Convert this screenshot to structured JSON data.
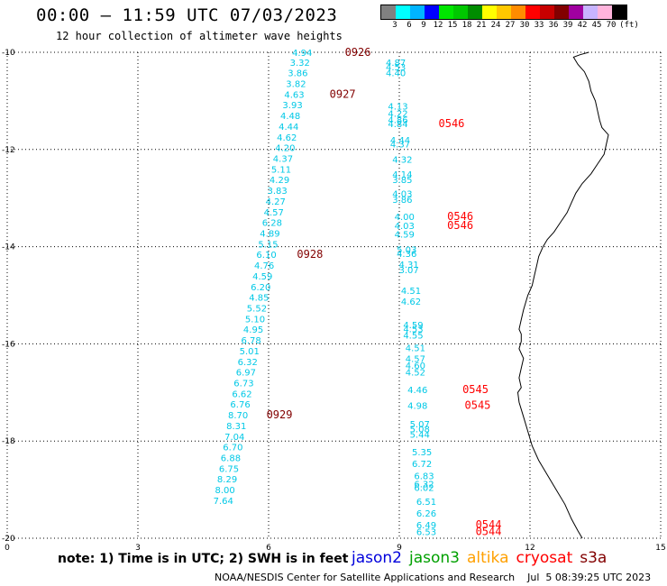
{
  "header": {
    "title": "00:00 – 11:59 UTC 07/03/2023",
    "subtitle": "12 hour collection of altimeter wave heights"
  },
  "colorbar": {
    "unit": "(ft)",
    "labels": [
      "3",
      "6",
      "9",
      "12",
      "15",
      "18",
      "21",
      "24",
      "27",
      "30",
      "33",
      "36",
      "39",
      "42",
      "45",
      "70"
    ],
    "colors": [
      "#808080",
      "#00ffff",
      "#00b4ff",
      "#0000ff",
      "#00e600",
      "#00c800",
      "#008c00",
      "#ffff00",
      "#ffc800",
      "#ff8c00",
      "#ff0000",
      "#c80000",
      "#820000",
      "#a000a0",
      "#c8b4ff",
      "#ffb4dc",
      "#000000"
    ]
  },
  "map": {
    "lon_range": [
      0,
      15
    ],
    "lat_range": [
      -20,
      -10
    ],
    "lon_ticks": [
      "0",
      "3",
      "6",
      "9",
      "12",
      "15"
    ],
    "lat_ticks": [
      "-10",
      "-12",
      "-14",
      "-16",
      "-18",
      "-20"
    ],
    "grid": true,
    "grid_style": "dotted",
    "coastline_color": "#000000"
  },
  "tracks": [
    {
      "name": "west_track",
      "color": "#00c8e6",
      "points": [
        {
          "lon": 7.0,
          "lat": -10.0,
          "v": "4.94"
        },
        {
          "lon": 6.95,
          "lat": -10.2,
          "v": "3.32"
        },
        {
          "lon": 6.9,
          "lat": -10.42,
          "v": "3.86"
        },
        {
          "lon": 6.86,
          "lat": -10.64,
          "v": "3.82"
        },
        {
          "lon": 6.82,
          "lat": -10.86,
          "v": "4.63"
        },
        {
          "lon": 6.78,
          "lat": -11.08,
          "v": "3.93"
        },
        {
          "lon": 6.73,
          "lat": -11.3,
          "v": "4.48"
        },
        {
          "lon": 6.69,
          "lat": -11.52,
          "v": "4.44"
        },
        {
          "lon": 6.65,
          "lat": -11.74,
          "v": "4.62"
        },
        {
          "lon": 6.61,
          "lat": -11.96,
          "v": "4.20"
        },
        {
          "lon": 6.56,
          "lat": -12.18,
          "v": "4.37"
        },
        {
          "lon": 6.52,
          "lat": -12.4,
          "v": "5.11"
        },
        {
          "lon": 6.48,
          "lat": -12.62,
          "v": "4.29"
        },
        {
          "lon": 6.43,
          "lat": -12.84,
          "v": "3.83"
        },
        {
          "lon": 6.39,
          "lat": -13.06,
          "v": "4.27"
        },
        {
          "lon": 6.35,
          "lat": -13.28,
          "v": "4.57"
        },
        {
          "lon": 6.31,
          "lat": -13.5,
          "v": "6.28"
        },
        {
          "lon": 6.26,
          "lat": -13.72,
          "v": "4.89"
        },
        {
          "lon": 6.22,
          "lat": -13.94,
          "v": "5.15"
        },
        {
          "lon": 6.18,
          "lat": -14.16,
          "v": "6.10"
        },
        {
          "lon": 6.13,
          "lat": -14.38,
          "v": "4.76"
        },
        {
          "lon": 6.09,
          "lat": -14.6,
          "v": "4.59"
        },
        {
          "lon": 6.05,
          "lat": -14.82,
          "v": "6.20"
        },
        {
          "lon": 6.01,
          "lat": -15.04,
          "v": "4.85"
        },
        {
          "lon": 5.96,
          "lat": -15.26,
          "v": "5.52"
        },
        {
          "lon": 5.92,
          "lat": -15.48,
          "v": "5.10"
        },
        {
          "lon": 5.88,
          "lat": -15.7,
          "v": "4.95"
        },
        {
          "lon": 5.83,
          "lat": -15.92,
          "v": "6.78"
        },
        {
          "lon": 5.79,
          "lat": -16.14,
          "v": "5.01"
        },
        {
          "lon": 5.75,
          "lat": -16.36,
          "v": "6.32"
        },
        {
          "lon": 5.71,
          "lat": -16.58,
          "v": "6.97"
        },
        {
          "lon": 5.66,
          "lat": -16.8,
          "v": "6.73"
        },
        {
          "lon": 5.62,
          "lat": -17.02,
          "v": "6.62"
        },
        {
          "lon": 5.58,
          "lat": -17.24,
          "v": "6.76"
        },
        {
          "lon": 5.53,
          "lat": -17.46,
          "v": "8.70"
        },
        {
          "lon": 5.49,
          "lat": -17.68,
          "v": "8.31"
        },
        {
          "lon": 5.45,
          "lat": -17.9,
          "v": "7.04"
        },
        {
          "lon": 5.41,
          "lat": -18.12,
          "v": "6.70"
        },
        {
          "lon": 5.36,
          "lat": -18.34,
          "v": "6.88"
        },
        {
          "lon": 5.32,
          "lat": -18.56,
          "v": "6.75"
        },
        {
          "lon": 5.28,
          "lat": -18.78,
          "v": "8.29"
        },
        {
          "lon": 5.23,
          "lat": -19.0,
          "v": "8.00"
        },
        {
          "lon": 5.19,
          "lat": -19.22,
          "v": "7.64"
        }
      ]
    },
    {
      "name": "east_track",
      "color": "#00c8e6",
      "points": [
        {
          "lon": 9.15,
          "lat": -10.2,
          "v": "4.87"
        },
        {
          "lon": 9.15,
          "lat": -10.3,
          "v": "4.53"
        },
        {
          "lon": 9.15,
          "lat": -10.42,
          "v": "4.40"
        },
        {
          "lon": 9.2,
          "lat": -11.1,
          "v": "4.13"
        },
        {
          "lon": 9.2,
          "lat": -11.25,
          "v": "4.22"
        },
        {
          "lon": 9.2,
          "lat": -11.38,
          "v": "4.86"
        },
        {
          "lon": 9.2,
          "lat": -11.47,
          "v": "4.84"
        },
        {
          "lon": 9.25,
          "lat": -11.8,
          "v": "4.44"
        },
        {
          "lon": 9.25,
          "lat": -11.88,
          "v": "4.37"
        },
        {
          "lon": 9.3,
          "lat": -12.2,
          "v": "4.32"
        },
        {
          "lon": 9.3,
          "lat": -12.5,
          "v": "4.14"
        },
        {
          "lon": 9.3,
          "lat": -12.62,
          "v": "3.85"
        },
        {
          "lon": 9.3,
          "lat": -12.9,
          "v": "4.03"
        },
        {
          "lon": 9.3,
          "lat": -13.02,
          "v": "3.86"
        },
        {
          "lon": 9.35,
          "lat": -13.38,
          "v": "4.00"
        },
        {
          "lon": 9.35,
          "lat": -13.56,
          "v": "4.03"
        },
        {
          "lon": 9.35,
          "lat": -13.74,
          "v": "4.59"
        },
        {
          "lon": 9.4,
          "lat": -14.05,
          "v": "5.03"
        },
        {
          "lon": 9.4,
          "lat": -14.14,
          "v": "4.36"
        },
        {
          "lon": 9.45,
          "lat": -14.36,
          "v": "4.31"
        },
        {
          "lon": 9.45,
          "lat": -14.47,
          "v": "3.07"
        },
        {
          "lon": 9.5,
          "lat": -14.9,
          "v": "4.51"
        },
        {
          "lon": 9.5,
          "lat": -15.12,
          "v": "4.62"
        },
        {
          "lon": 9.55,
          "lat": -15.6,
          "v": "4.59"
        },
        {
          "lon": 9.55,
          "lat": -15.69,
          "v": "4.53"
        },
        {
          "lon": 9.55,
          "lat": -15.82,
          "v": "4.55"
        },
        {
          "lon": 9.6,
          "lat": -16.08,
          "v": "4.51"
        },
        {
          "lon": 9.6,
          "lat": -16.3,
          "v": "4.57"
        },
        {
          "lon": 9.6,
          "lat": -16.44,
          "v": "4.60"
        },
        {
          "lon": 9.6,
          "lat": -16.58,
          "v": "4.52"
        },
        {
          "lon": 9.65,
          "lat": -16.94,
          "v": "4.46"
        },
        {
          "lon": 9.65,
          "lat": -17.26,
          "v": "4.98"
        },
        {
          "lon": 9.7,
          "lat": -17.64,
          "v": "5.07"
        },
        {
          "lon": 9.7,
          "lat": -17.75,
          "v": "5.08"
        },
        {
          "lon": 9.7,
          "lat": -17.86,
          "v": "5.44"
        },
        {
          "lon": 9.75,
          "lat": -18.22,
          "v": "5.35"
        },
        {
          "lon": 9.75,
          "lat": -18.46,
          "v": "6.72"
        },
        {
          "lon": 9.8,
          "lat": -18.71,
          "v": "6.83"
        },
        {
          "lon": 9.8,
          "lat": -18.88,
          "v": "6.32"
        },
        {
          "lon": 9.8,
          "lat": -18.95,
          "v": "6.02"
        },
        {
          "lon": 9.85,
          "lat": -19.24,
          "v": "6.51"
        },
        {
          "lon": 9.85,
          "lat": -19.48,
          "v": "6.26"
        },
        {
          "lon": 9.85,
          "lat": -19.72,
          "v": "6.49"
        },
        {
          "lon": 9.85,
          "lat": -19.86,
          "v": "6.53"
        }
      ]
    }
  ],
  "pass_labels": [
    {
      "text": "0926",
      "lon": 7.75,
      "lat": -10.0,
      "color": "#820000"
    },
    {
      "text": "0927",
      "lon": 7.4,
      "lat": -10.86,
      "color": "#820000"
    },
    {
      "text": "0928",
      "lon": 6.65,
      "lat": -14.16,
      "color": "#820000"
    },
    {
      "text": "0929",
      "lon": 5.95,
      "lat": -17.46,
      "color": "#820000"
    },
    {
      "text": "0546",
      "lon": 9.9,
      "lat": -11.47,
      "color": "#ff0000"
    },
    {
      "text": "0546",
      "lon": 10.1,
      "lat": -13.38,
      "color": "#ff0000"
    },
    {
      "text": "0546",
      "lon": 10.1,
      "lat": -13.56,
      "color": "#ff0000"
    },
    {
      "text": "0545",
      "lon": 10.45,
      "lat": -16.94,
      "color": "#ff0000"
    },
    {
      "text": "0545",
      "lon": 10.5,
      "lat": -17.26,
      "color": "#ff0000"
    },
    {
      "text": "0544",
      "lon": 10.75,
      "lat": -19.72,
      "color": "#ff0000"
    },
    {
      "text": "0544",
      "lon": 10.75,
      "lat": -19.86,
      "color": "#ff0000"
    }
  ],
  "coastline": [
    [
      13.35,
      -10.0
    ],
    [
      13.15,
      -10.05
    ],
    [
      13.0,
      -10.1
    ],
    [
      13.1,
      -10.25
    ],
    [
      13.25,
      -10.4
    ],
    [
      13.35,
      -10.6
    ],
    [
      13.4,
      -10.8
    ],
    [
      13.5,
      -11.0
    ],
    [
      13.55,
      -11.2
    ],
    [
      13.6,
      -11.4
    ],
    [
      13.65,
      -11.55
    ],
    [
      13.8,
      -11.7
    ],
    [
      13.75,
      -11.9
    ],
    [
      13.7,
      -12.1
    ],
    [
      13.55,
      -12.3
    ],
    [
      13.4,
      -12.5
    ],
    [
      13.2,
      -12.7
    ],
    [
      13.05,
      -12.9
    ],
    [
      12.95,
      -13.1
    ],
    [
      12.85,
      -13.3
    ],
    [
      12.7,
      -13.5
    ],
    [
      12.55,
      -13.7
    ],
    [
      12.4,
      -13.85
    ],
    [
      12.3,
      -14.0
    ],
    [
      12.2,
      -14.2
    ],
    [
      12.15,
      -14.4
    ],
    [
      12.1,
      -14.6
    ],
    [
      12.05,
      -14.8
    ],
    [
      11.95,
      -15.0
    ],
    [
      11.85,
      -15.3
    ],
    [
      11.8,
      -15.5
    ],
    [
      11.75,
      -15.7
    ],
    [
      11.8,
      -15.8
    ],
    [
      11.8,
      -15.95
    ],
    [
      11.75,
      -16.1
    ],
    [
      11.85,
      -16.3
    ],
    [
      11.8,
      -16.5
    ],
    [
      11.75,
      -16.7
    ],
    [
      11.8,
      -16.9
    ],
    [
      11.72,
      -17.0
    ],
    [
      11.75,
      -17.2
    ],
    [
      11.85,
      -17.5
    ],
    [
      11.95,
      -17.8
    ],
    [
      12.05,
      -18.1
    ],
    [
      12.2,
      -18.4
    ],
    [
      12.4,
      -18.7
    ],
    [
      12.6,
      -19.0
    ],
    [
      12.8,
      -19.3
    ],
    [
      12.95,
      -19.6
    ],
    [
      13.1,
      -19.85
    ],
    [
      13.2,
      -20.0
    ]
  ],
  "footer": {
    "note": "note: 1) Time is in UTC; 2) SWH is in feet",
    "legend": [
      {
        "label": "jason2",
        "color": "#0000dc"
      },
      {
        "label": "jason3",
        "color": "#00a000"
      },
      {
        "label": "altika",
        "color": "#ffa000"
      },
      {
        "label": "cryosat",
        "color": "#ff0000"
      },
      {
        "label": "s3a",
        "color": "#820000"
      }
    ],
    "credit": "NOAA/NESDIS Center for Satellite Applications and Research    Jul  5 08:39:25 UTC 2023"
  }
}
